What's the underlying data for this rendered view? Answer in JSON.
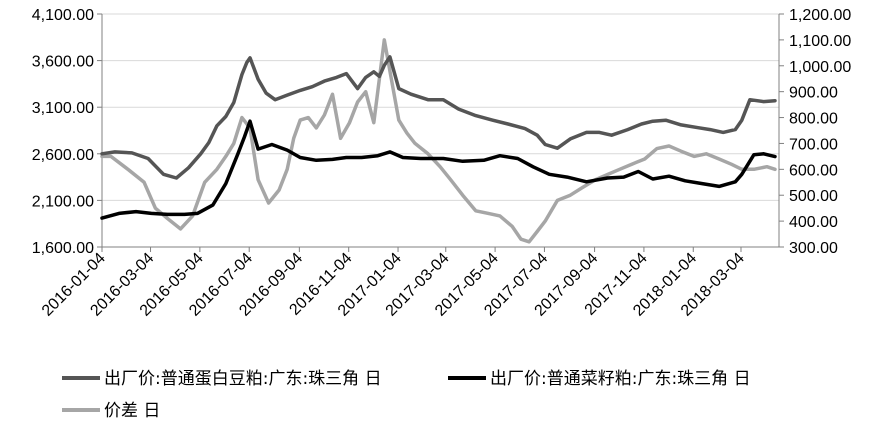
{
  "chart_data": {
    "type": "line",
    "title": "",
    "xlabel": "",
    "ylabel": "",
    "y_left": {
      "range": [
        1600,
        4100
      ],
      "ticks": [
        1600,
        2100,
        2600,
        3100,
        3600,
        4100
      ],
      "tick_labels": [
        "1,600.00",
        "2,100.00",
        "2,600.00",
        "3,100.00",
        "3,600.00",
        "4,100.00"
      ]
    },
    "y_right": {
      "range": [
        300,
        1200
      ],
      "ticks": [
        300,
        400,
        500,
        600,
        700,
        800,
        900,
        1000,
        1100,
        1200
      ],
      "tick_labels": [
        "300.00",
        "400.00",
        "500.00",
        "600.00",
        "700.00",
        "800.00",
        "900.00",
        "1,000.00",
        "1,100.00",
        "1,200.00"
      ]
    },
    "x_axis": {
      "range": [
        "2016-01-04",
        "2018-04-20"
      ],
      "tick_labels": [
        "2016-01-04",
        "2016-03-04",
        "2016-05-04",
        "2016-07-04",
        "2016-09-04",
        "2016-11-04",
        "2017-01-04",
        "2017-03-04",
        "2017-05-04",
        "2017-07-04",
        "2017-09-04",
        "2017-11-04",
        "2018-01-04",
        "2018-03-04"
      ]
    },
    "grid": "horizontal",
    "legend_position": "bottom",
    "series": [
      {
        "name": "出厂价:普通蛋白豆粕:广东:珠三角 日",
        "axis": "left",
        "color": "#555555",
        "x": [
          "2016-01-04",
          "2016-01-20",
          "2016-02-10",
          "2016-03-01",
          "2016-03-20",
          "2016-04-05",
          "2016-04-20",
          "2016-05-05",
          "2016-05-15",
          "2016-05-25",
          "2016-06-05",
          "2016-06-15",
          "2016-06-25",
          "2016-07-01",
          "2016-07-05",
          "2016-07-15",
          "2016-07-25",
          "2016-08-05",
          "2016-08-20",
          "2016-09-05",
          "2016-09-20",
          "2016-10-05",
          "2016-10-20",
          "2016-11-01",
          "2016-11-15",
          "2016-11-25",
          "2016-12-05",
          "2016-12-12",
          "2016-12-18",
          "2016-12-25",
          "2017-01-05",
          "2017-01-20",
          "2017-02-10",
          "2017-03-01",
          "2017-03-20",
          "2017-04-10",
          "2017-05-01",
          "2017-05-20",
          "2017-06-10",
          "2017-06-25",
          "2017-07-05",
          "2017-07-20",
          "2017-08-05",
          "2017-08-25",
          "2017-09-10",
          "2017-09-25",
          "2017-10-15",
          "2017-11-01",
          "2017-11-15",
          "2017-12-01",
          "2017-12-20",
          "2018-01-10",
          "2018-01-25",
          "2018-02-10",
          "2018-02-25",
          "2018-03-05",
          "2018-03-15",
          "2018-04-01",
          "2018-04-15"
        ],
        "values": [
          2600,
          2620,
          2610,
          2550,
          2380,
          2340,
          2450,
          2600,
          2720,
          2900,
          3000,
          3150,
          3450,
          3580,
          3630,
          3400,
          3250,
          3180,
          3230,
          3280,
          3320,
          3380,
          3420,
          3460,
          3300,
          3420,
          3480,
          3430,
          3550,
          3640,
          3300,
          3240,
          3180,
          3180,
          3080,
          3010,
          2960,
          2920,
          2870,
          2800,
          2700,
          2660,
          2760,
          2830,
          2830,
          2800,
          2860,
          2920,
          2950,
          2960,
          2910,
          2880,
          2860,
          2830,
          2860,
          2960,
          3180,
          3160,
          3170
        ]
      },
      {
        "name": "出厂价:普通菜籽粕:广东:珠三角 日",
        "axis": "left",
        "color": "#000000",
        "x": [
          "2016-01-04",
          "2016-01-25",
          "2016-02-15",
          "2016-03-05",
          "2016-03-25",
          "2016-04-15",
          "2016-05-01",
          "2016-05-20",
          "2016-06-05",
          "2016-06-20",
          "2016-06-28",
          "2016-07-05",
          "2016-07-15",
          "2016-08-01",
          "2016-08-20",
          "2016-09-05",
          "2016-09-25",
          "2016-10-15",
          "2016-11-01",
          "2016-11-20",
          "2016-12-10",
          "2016-12-25",
          "2017-01-10",
          "2017-02-01",
          "2017-03-01",
          "2017-03-25",
          "2017-04-20",
          "2017-05-10",
          "2017-06-01",
          "2017-06-20",
          "2017-07-10",
          "2017-08-01",
          "2017-08-25",
          "2017-09-20",
          "2017-10-10",
          "2017-10-28",
          "2017-11-15",
          "2017-12-05",
          "2017-12-25",
          "2018-01-15",
          "2018-02-05",
          "2018-02-25",
          "2018-03-05",
          "2018-03-20",
          "2018-04-01",
          "2018-04-15"
        ],
        "values": [
          1910,
          1960,
          1980,
          1960,
          1950,
          1950,
          1960,
          2050,
          2280,
          2600,
          2780,
          2950,
          2650,
          2700,
          2640,
          2560,
          2530,
          2540,
          2560,
          2560,
          2580,
          2620,
          2560,
          2550,
          2550,
          2520,
          2530,
          2580,
          2550,
          2460,
          2380,
          2350,
          2300,
          2340,
          2350,
          2410,
          2330,
          2360,
          2310,
          2280,
          2250,
          2300,
          2380,
          2590,
          2600,
          2570
        ]
      },
      {
        "name": "价差 日",
        "axis": "right",
        "color": "#a6a6a6",
        "x": [
          "2016-01-04",
          "2016-01-15",
          "2016-02-05",
          "2016-02-25",
          "2016-03-10",
          "2016-03-25",
          "2016-04-10",
          "2016-04-25",
          "2016-05-10",
          "2016-05-25",
          "2016-06-05",
          "2016-06-15",
          "2016-06-25",
          "2016-07-05",
          "2016-07-15",
          "2016-07-28",
          "2016-08-10",
          "2016-08-20",
          "2016-08-28",
          "2016-09-05",
          "2016-09-15",
          "2016-09-25",
          "2016-10-05",
          "2016-10-15",
          "2016-10-25",
          "2016-11-05",
          "2016-11-15",
          "2016-11-25",
          "2016-12-05",
          "2016-12-12",
          "2016-12-18",
          "2016-12-25",
          "2017-01-05",
          "2017-01-15",
          "2017-01-25",
          "2017-02-10",
          "2017-02-25",
          "2017-03-10",
          "2017-03-25",
          "2017-04-10",
          "2017-04-25",
          "2017-05-10",
          "2017-05-25",
          "2017-06-05",
          "2017-06-15",
          "2017-06-25",
          "2017-07-05",
          "2017-07-20",
          "2017-08-05",
          "2017-08-20",
          "2017-09-05",
          "2017-09-20",
          "2017-10-05",
          "2017-10-20",
          "2017-11-05",
          "2017-11-20",
          "2017-12-05",
          "2017-12-20",
          "2018-01-05",
          "2018-01-20",
          "2018-02-05",
          "2018-02-20",
          "2018-03-05",
          "2018-03-20",
          "2018-04-05",
          "2018-04-15"
        ],
        "values": [
          650,
          650,
          600,
          550,
          450,
          410,
          370,
          420,
          550,
          600,
          650,
          700,
          800,
          760,
          560,
          470,
          520,
          600,
          720,
          790,
          800,
          760,
          810,
          890,
          720,
          780,
          860,
          900,
          780,
          950,
          1100,
          980,
          790,
          740,
          700,
          660,
          610,
          560,
          500,
          440,
          430,
          420,
          380,
          330,
          320,
          360,
          400,
          480,
          500,
          530,
          560,
          580,
          600,
          620,
          640,
          680,
          690,
          670,
          650,
          660,
          640,
          620,
          600,
          600,
          610,
          600
        ]
      }
    ]
  }
}
